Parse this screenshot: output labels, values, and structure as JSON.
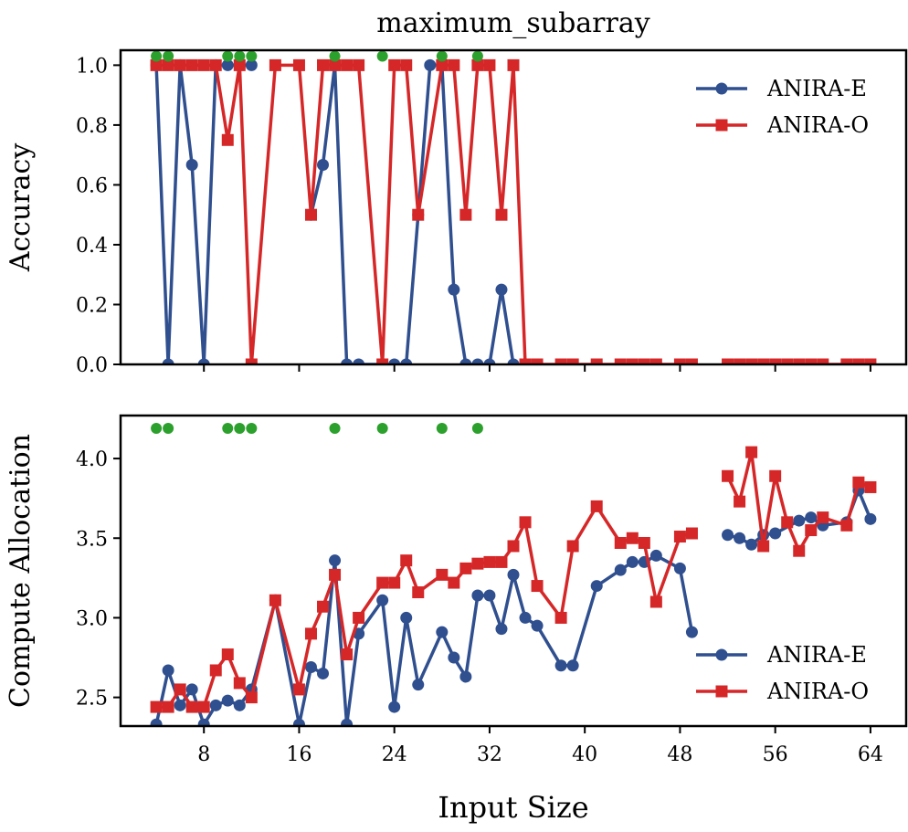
{
  "chart_data": {
    "type": "line",
    "title": "maximum_subarray",
    "xlabel": "Input Size",
    "x_ticks": [
      8,
      16,
      24,
      32,
      40,
      48,
      56,
      64
    ],
    "xlim": [
      1,
      67
    ],
    "colors": {
      "ANIRA-E": "#2f4f8f",
      "ANIRA-O": "#d62728",
      "highlight": "#2ca02c"
    },
    "legend_position": "top-right / center-right",
    "highlight_x": [
      4,
      5,
      10,
      11,
      12,
      19,
      23,
      28,
      31
    ],
    "panels": [
      {
        "name": "accuracy",
        "ylabel": "Accuracy",
        "ylim": [
          0,
          1.05
        ],
        "y_ticks": [
          "0.0",
          "0.2",
          "0.4",
          "0.6",
          "0.8",
          "1.0"
        ],
        "highlight_y": 1.03,
        "legend_position": "top-right",
        "series": [
          {
            "name": "ANIRA-E",
            "x": [
              4,
              5,
              6,
              7,
              8,
              9,
              10,
              11,
              12,
              17,
              18,
              19,
              20,
              21,
              23,
              24,
              25,
              26,
              27,
              28,
              29,
              30,
              31,
              32,
              33,
              34
            ],
            "y": [
              1.0,
              0.0,
              1.0,
              0.667,
              0.0,
              1.0,
              1.0,
              1.0,
              1.0,
              0.5,
              0.667,
              1.0,
              0.0,
              0.0,
              0.0,
              0.0,
              0.0,
              0.5,
              1.0,
              1.0,
              0.25,
              0.0,
              0.0,
              0.0,
              0.25,
              0.0
            ]
          },
          {
            "name": "ANIRA-O",
            "x": [
              4,
              5,
              6,
              7,
              8,
              9,
              10,
              11,
              12,
              14,
              16,
              17,
              18,
              19,
              20,
              21,
              23,
              24,
              25,
              26,
              28,
              29,
              30,
              31,
              32,
              33,
              34,
              35,
              36,
              38,
              39,
              41,
              43,
              44,
              45,
              46,
              48,
              49,
              52,
              53,
              54,
              55,
              56,
              57,
              58,
              59,
              60,
              62,
              63,
              64
            ],
            "y": [
              1.0,
              1.0,
              1.0,
              1.0,
              1.0,
              1.0,
              0.75,
              1.0,
              0.0,
              1.0,
              1.0,
              0.5,
              1.0,
              1.0,
              1.0,
              1.0,
              0.0,
              1.0,
              1.0,
              0.5,
              1.0,
              1.0,
              0.5,
              1.0,
              1.0,
              0.5,
              1.0,
              0.0,
              0.0,
              0.0,
              0.0,
              0.0,
              0.0,
              0.0,
              0.0,
              0.0,
              0.0,
              0.0,
              0.0,
              0.0,
              0.0,
              0.0,
              0.0,
              0.0,
              0.0,
              0.0,
              0.0,
              0.0,
              0.0,
              0.0
            ]
          }
        ]
      },
      {
        "name": "compute",
        "ylabel": "Compute Allocation",
        "ylim": [
          2.32,
          4.27
        ],
        "y_ticks": [
          "2.5",
          "3.0",
          "3.5",
          "4.0"
        ],
        "highlight_y": 4.19,
        "legend_position": "bottom-right",
        "series": [
          {
            "name": "ANIRA-E",
            "x": [
              4,
              5,
              6,
              7,
              8,
              9,
              10,
              11,
              12,
              14,
              16,
              17,
              18,
              19,
              20,
              21,
              23,
              24,
              25,
              26,
              28,
              29,
              30,
              31,
              32,
              33,
              34,
              35,
              36,
              38,
              39,
              41,
              43,
              44,
              45,
              46,
              48,
              49,
              52,
              53,
              54,
              55,
              56,
              58,
              59,
              60,
              62,
              63,
              64
            ],
            "y": [
              2.33,
              2.67,
              2.45,
              2.55,
              2.33,
              2.45,
              2.48,
              2.45,
              2.55,
              3.11,
              2.33,
              2.69,
              2.65,
              3.36,
              2.33,
              2.9,
              3.11,
              2.44,
              3.0,
              2.58,
              2.91,
              2.75,
              2.63,
              3.14,
              3.14,
              2.93,
              3.27,
              3.0,
              2.95,
              2.7,
              2.7,
              3.2,
              3.3,
              3.35,
              3.35,
              3.39,
              3.31,
              2.91,
              3.52,
              3.5,
              3.46,
              3.52,
              3.53,
              3.61,
              3.63,
              3.58,
              3.6,
              3.8,
              3.62
            ]
          },
          {
            "name": "ANIRA-O",
            "x": [
              4,
              5,
              6,
              7,
              8,
              9,
              10,
              11,
              12,
              14,
              16,
              17,
              18,
              19,
              20,
              21,
              23,
              24,
              25,
              26,
              28,
              29,
              30,
              31,
              32,
              33,
              34,
              35,
              36,
              38,
              39,
              41,
              43,
              44,
              45,
              46,
              48,
              49,
              52,
              53,
              54,
              55,
              56,
              57,
              58,
              59,
              60,
              62,
              63,
              64
            ],
            "y": [
              2.44,
              2.44,
              2.55,
              2.44,
              2.44,
              2.67,
              2.77,
              2.59,
              2.5,
              3.11,
              2.55,
              2.9,
              3.07,
              3.27,
              2.77,
              3.0,
              3.22,
              3.22,
              3.36,
              3.16,
              3.27,
              3.22,
              3.31,
              3.34,
              3.35,
              3.35,
              3.45,
              3.6,
              3.2,
              3.0,
              3.45,
              3.7,
              3.47,
              3.5,
              3.47,
              3.1,
              3.51,
              3.53,
              3.89,
              3.73,
              4.04,
              3.45,
              3.89,
              3.6,
              3.42,
              3.55,
              3.63,
              3.58,
              3.85,
              3.82
            ]
          }
        ]
      }
    ]
  }
}
